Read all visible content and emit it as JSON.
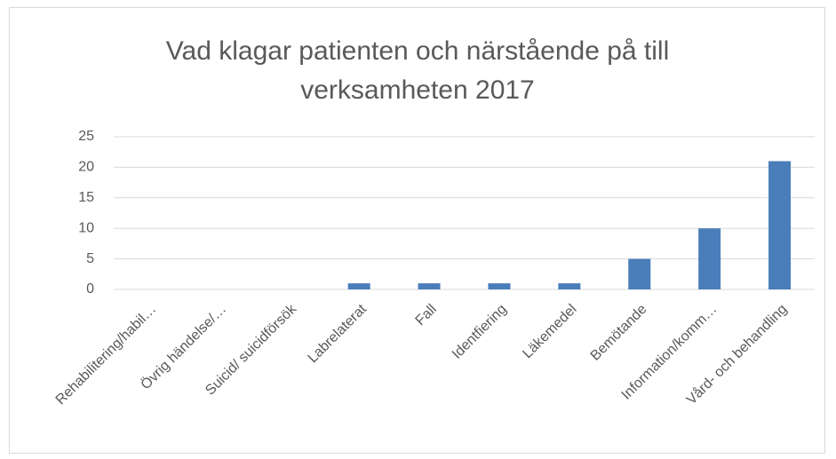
{
  "chart_data": {
    "type": "bar",
    "title": "Vad klagar patienten och närstående på till verksamheten 2017",
    "categories": [
      "Rehabilitering/habil…",
      "Övrig händelse/…",
      "Suicid/ suicidförsök",
      "Labrelaterat",
      "Fall",
      "Identfiering",
      "Läkemedel",
      "Bemötande",
      "Information/komm…",
      "Vård- och behandling"
    ],
    "values": [
      0,
      0,
      0,
      1,
      1,
      1,
      1,
      5,
      10,
      21
    ],
    "color": "#4a7ebb",
    "ylim": [
      0,
      25
    ],
    "yticks": [
      0,
      5,
      10,
      15,
      20,
      25
    ],
    "grid": true
  }
}
